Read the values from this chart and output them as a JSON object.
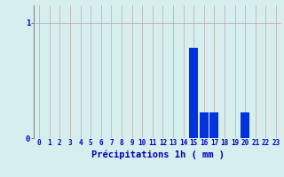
{
  "hours": [
    0,
    1,
    2,
    3,
    4,
    5,
    6,
    7,
    8,
    9,
    10,
    11,
    12,
    13,
    14,
    15,
    16,
    17,
    18,
    19,
    20,
    21,
    22,
    23
  ],
  "values": [
    0,
    0,
    0,
    0,
    0,
    0,
    0,
    0,
    0,
    0,
    0,
    0,
    0,
    0,
    0,
    0.78,
    0.22,
    0.22,
    0,
    0,
    0.22,
    0,
    0,
    0
  ],
  "bar_color": "#0033dd",
  "background_color": "#d6eeee",
  "grid_color_v": "#c0a8a8",
  "xlabel": "Précipitations 1h ( mm )",
  "xlabel_color": "#0000bb",
  "xlabel_fontsize": 7.5,
  "tick_color": "#0000bb",
  "tick_fontsize": 5.5,
  "ytick_fontsize": 6.5,
  "yticks": [
    0,
    1
  ],
  "ylim": [
    0,
    1.15
  ],
  "xlim": [
    -0.5,
    23.5
  ]
}
